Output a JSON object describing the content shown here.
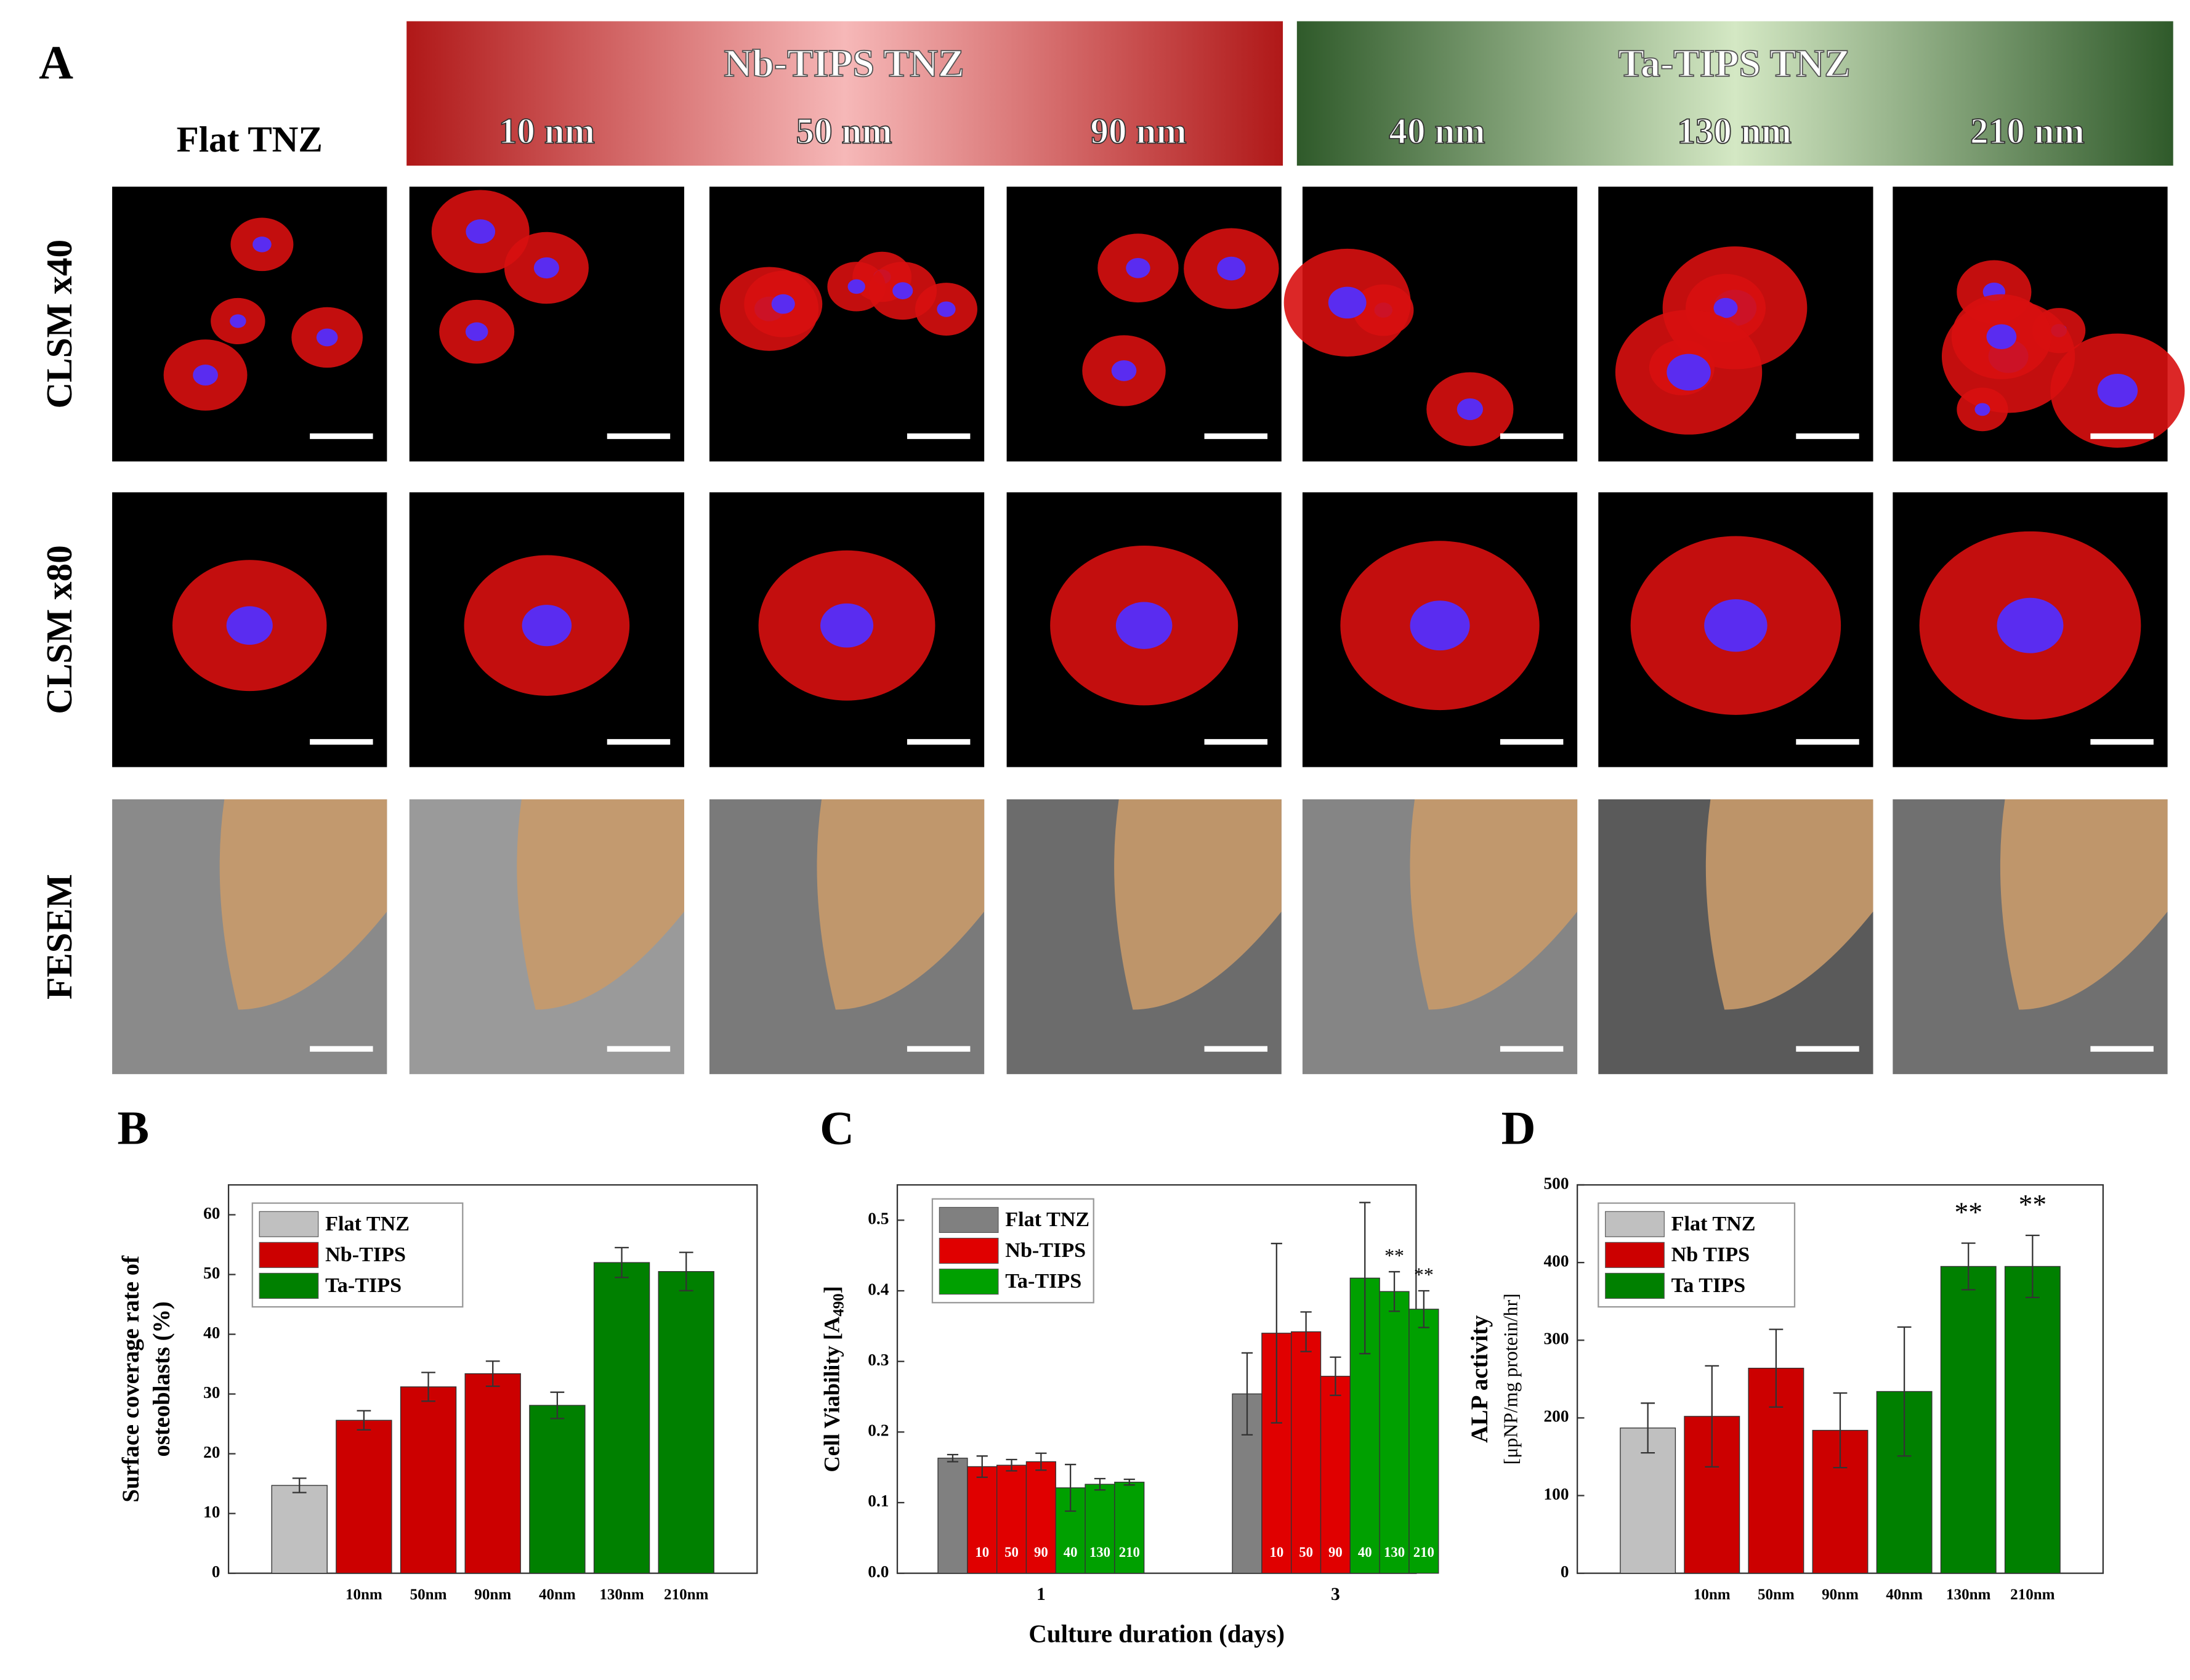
{
  "panel_a": {
    "label": "A",
    "flat": "Flat TNZ",
    "groups": [
      {
        "title": "Nb-TIPS TNZ",
        "columns": [
          "10 nm",
          "50 nm",
          "90 nm"
        ]
      },
      {
        "title": "Ta-TIPS TNZ",
        "columns": [
          "40 nm",
          "130 nm",
          "210 nm"
        ]
      }
    ],
    "rows": [
      "CLSM x40",
      "CLSM x80",
      "FESEM"
    ]
  },
  "chart_data": [
    {
      "type": "bar",
      "panel": "B",
      "y_label": [
        "Surface coverage rate of",
        "osteoblasts (%)"
      ],
      "categories": [
        null,
        "10nm",
        "50nm",
        "90nm",
        "40nm",
        "130nm",
        "210nm"
      ],
      "series": [
        {
          "name": "Flat TNZ",
          "color": "#c0c0c0",
          "values": [
            14.7,
            null,
            null,
            null,
            null,
            null,
            null
          ],
          "errors": [
            1.2,
            null,
            null,
            null,
            null,
            null,
            null
          ]
        },
        {
          "name": "Nb-TIPS",
          "color": "#cc0000",
          "values": [
            null,
            25.6,
            31.2,
            33.4,
            null,
            null,
            null
          ],
          "errors": [
            null,
            1.6,
            2.4,
            2.1,
            null,
            null,
            null
          ]
        },
        {
          "name": "Ta-TIPS",
          "color": "#008000",
          "values": [
            null,
            null,
            null,
            null,
            28.1,
            52.0,
            50.5
          ],
          "errors": [
            null,
            null,
            null,
            null,
            2.2,
            2.5,
            3.2
          ]
        }
      ],
      "ylim": [
        0,
        65
      ],
      "yticks": [
        0,
        10,
        20,
        30,
        40,
        50,
        60
      ]
    },
    {
      "type": "grouped_bar",
      "panel": "C",
      "y_label": [
        "Cell Viability [A",
        "490",
        "]"
      ],
      "x_label": "Culture duration (days)",
      "categories": [
        "1",
        "3"
      ],
      "legend": [
        {
          "name": "Flat TNZ",
          "color": "#808080"
        },
        {
          "name": "Nb-TIPS",
          "color": "#e00000"
        },
        {
          "name": "Ta-TIPS",
          "color": "#00a000"
        }
      ],
      "bars": [
        {
          "label": null,
          "color": "#808080",
          "values": [
            0.163,
            0.254
          ],
          "errors": [
            0.005,
            0.058
          ],
          "annotations": [
            null,
            null
          ]
        },
        {
          "label": "10",
          "color": "#e00000",
          "values": [
            0.151,
            0.34
          ],
          "errors": [
            0.015,
            0.127
          ],
          "annotations": [
            null,
            null
          ]
        },
        {
          "label": "50",
          "color": "#e00000",
          "values": [
            0.153,
            0.342
          ],
          "errors": [
            0.008,
            0.028
          ],
          "annotations": [
            null,
            null
          ]
        },
        {
          "label": "90",
          "color": "#e00000",
          "values": [
            0.158,
            0.279
          ],
          "errors": [
            0.012,
            0.027
          ],
          "annotations": [
            null,
            null
          ]
        },
        {
          "label": "40",
          "color": "#00a000",
          "values": [
            0.121,
            0.418
          ],
          "errors": [
            0.033,
            0.107
          ],
          "annotations": [
            null,
            null
          ]
        },
        {
          "label": "130",
          "color": "#00a000",
          "values": [
            0.126,
            0.399
          ],
          "errors": [
            0.008,
            0.028
          ],
          "annotations": [
            null,
            "**"
          ]
        },
        {
          "label": "210",
          "color": "#00a000",
          "values": [
            0.129,
            0.374
          ],
          "errors": [
            0.004,
            0.026
          ],
          "annotations": [
            null,
            "**"
          ]
        }
      ],
      "ylim": [
        0,
        0.55
      ],
      "yticks": [
        {
          "value": 0,
          "label": "0.0"
        },
        0.1,
        0.2,
        0.3,
        0.4,
        0.5
      ]
    },
    {
      "type": "bar",
      "panel": "D",
      "y_label": [
        "ALP activity",
        "[μpNP/mg protein/hr]"
      ],
      "categories": [
        null,
        "10nm",
        "50nm",
        "90nm",
        "40nm",
        "130nm",
        "210nm"
      ],
      "series": [
        {
          "name": "Flat TNZ",
          "color": "#c0c0c0",
          "values": [
            187,
            null,
            null,
            null,
            null,
            null,
            null
          ],
          "errors": [
            32,
            null,
            null,
            null,
            null,
            null,
            null
          ]
        },
        {
          "name": "Nb TIPS",
          "color": "#cc0000",
          "values": [
            null,
            202,
            264,
            184,
            null,
            null,
            null
          ],
          "errors": [
            null,
            65,
            50,
            48,
            null,
            null,
            null
          ]
        },
        {
          "name": "Ta TIPS",
          "color": "#008000",
          "values": [
            null,
            null,
            null,
            null,
            234,
            395,
            395
          ],
          "errors": [
            null,
            null,
            null,
            null,
            83,
            30,
            40
          ]
        }
      ],
      "annotations": [
        null,
        null,
        null,
        null,
        null,
        "**",
        "**"
      ],
      "ylim": [
        0,
        500
      ],
      "yticks": [
        0,
        100,
        200,
        300,
        400,
        500
      ]
    }
  ]
}
